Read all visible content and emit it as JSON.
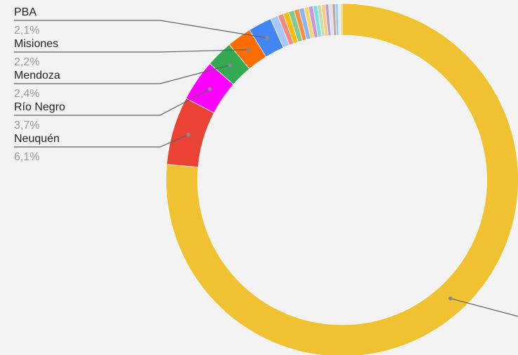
{
  "chart_data": {
    "type": "pie",
    "donut": true,
    "slices": [
      {
        "label": "",
        "value": 74.5,
        "color": "#f0c232"
      },
      {
        "label": "Neuquén",
        "display_value": "6,1%",
        "value": 6.1,
        "color": "#ea4335"
      },
      {
        "label": "Río Negro",
        "display_value": "3,7%",
        "value": 3.7,
        "color": "#ff00ff"
      },
      {
        "label": "Mendoza",
        "display_value": "2,4%",
        "value": 2.4,
        "color": "#34a853"
      },
      {
        "label": "Misiones",
        "display_value": "2,2%",
        "value": 2.2,
        "color": "#ff6d01"
      },
      {
        "label": "PBA",
        "display_value": "2,1%",
        "value": 2.1,
        "color": "#4285f4"
      },
      {
        "label": "",
        "value": 0.7,
        "color": "#a8c7fa"
      },
      {
        "label": "",
        "value": 0.5,
        "color": "#f28b82"
      },
      {
        "label": "",
        "value": 0.5,
        "color": "#fbbc04"
      },
      {
        "label": "",
        "value": 0.5,
        "color": "#81c995"
      },
      {
        "label": "",
        "value": 0.45,
        "color": "#fa903e"
      },
      {
        "label": "",
        "value": 0.45,
        "color": "#8ab4f8"
      },
      {
        "label": "",
        "value": 0.4,
        "color": "#fdd663"
      },
      {
        "label": "",
        "value": 0.4,
        "color": "#ce93d8"
      },
      {
        "label": "",
        "value": 0.4,
        "color": "#80deea"
      },
      {
        "label": "",
        "value": 0.35,
        "color": "#c5e1a5"
      },
      {
        "label": "",
        "value": 0.35,
        "color": "#ffcc80"
      },
      {
        "label": "",
        "value": 0.3,
        "color": "#b39ddb"
      },
      {
        "label": "",
        "value": 0.3,
        "color": "#e0e0e0"
      },
      {
        "label": "",
        "value": 0.3,
        "color": "#bcaaa4"
      },
      {
        "label": "",
        "value": 0.25,
        "color": "#90caf9"
      },
      {
        "label": "",
        "value": 0.2,
        "color": "#dcedc8"
      },
      {
        "label": "",
        "value": 0.15,
        "color": "#d7ccc8"
      }
    ],
    "start_angle_deg": 0,
    "direction": "clockwise",
    "legend": "none",
    "leader_line_color": "#616161"
  }
}
